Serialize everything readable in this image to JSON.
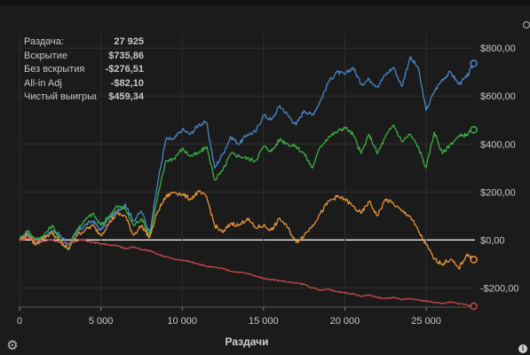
{
  "stats": [
    {
      "label": "Раздача:",
      "value": "27 925"
    },
    {
      "label": "Вскрытие",
      "value": "$735,86"
    },
    {
      "label": "Без вскрытия",
      "value": "-$276,51"
    },
    {
      "label": "All-in Adj",
      "value": "-$82,10"
    },
    {
      "label": "Чистый выигрыш",
      "value": "$459,34"
    }
  ],
  "icons": {
    "settings": "gear-icon",
    "info": "info-icon"
  },
  "info_glyph": "i",
  "chart_data": {
    "type": "line",
    "xlabel": "Раздачи",
    "ylabel": "",
    "xlim": [
      0,
      28000
    ],
    "ylim": [
      -280,
      860
    ],
    "x_ticks": [
      0,
      5000,
      10000,
      15000,
      20000,
      25000
    ],
    "x_tick_labels": [
      "0",
      "5 000",
      "10 000",
      "15 000",
      "20 000",
      "25 000"
    ],
    "y_ticks": [
      -200,
      0,
      200,
      400,
      600,
      800
    ],
    "y_tick_labels": [
      "-$200,00",
      "$0,00",
      "$200,00",
      "$400,00",
      "$600,00",
      "$800,00"
    ],
    "grid": true,
    "x": [
      0,
      500,
      1000,
      1500,
      2000,
      2500,
      3000,
      3500,
      4000,
      4500,
      5000,
      5500,
      6000,
      6500,
      7000,
      7500,
      8000,
      8500,
      9000,
      9500,
      10000,
      10500,
      11000,
      11500,
      12000,
      12500,
      13000,
      13500,
      14000,
      14500,
      15000,
      15500,
      16000,
      16500,
      17000,
      17500,
      18000,
      18500,
      19000,
      19500,
      20000,
      20500,
      21000,
      21500,
      22000,
      22500,
      23000,
      23500,
      24000,
      24500,
      25000,
      25500,
      26000,
      26500,
      27000,
      27500,
      27925
    ],
    "series": [
      {
        "color": "#4a86c8",
        "values": [
          0,
          30,
          -10,
          10,
          40,
          20,
          -20,
          30,
          60,
          80,
          40,
          90,
          120,
          150,
          80,
          120,
          30,
          240,
          420,
          420,
          460,
          440,
          480,
          490,
          300,
          360,
          430,
          400,
          440,
          450,
          520,
          500,
          560,
          520,
          480,
          540,
          520,
          580,
          660,
          700,
          690,
          720,
          650,
          670,
          640,
          690,
          720,
          640,
          760,
          720,
          540,
          620,
          670,
          700,
          650,
          680,
          735.86
        ]
      },
      {
        "color": "#3cb043",
        "values": [
          0,
          40,
          0,
          20,
          60,
          0,
          -40,
          40,
          80,
          110,
          60,
          100,
          140,
          130,
          60,
          90,
          20,
          180,
          330,
          340,
          380,
          350,
          360,
          390,
          250,
          290,
          360,
          350,
          340,
          330,
          390,
          370,
          420,
          400,
          390,
          360,
          300,
          390,
          430,
          450,
          470,
          440,
          360,
          440,
          360,
          430,
          480,
          410,
          440,
          390,
          300,
          450,
          360,
          400,
          430,
          440,
          459.34
        ]
      },
      {
        "color": "#e8943a",
        "values": [
          0,
          20,
          -20,
          10,
          30,
          -10,
          -40,
          20,
          40,
          60,
          20,
          70,
          110,
          100,
          20,
          60,
          10,
          120,
          180,
          200,
          190,
          170,
          200,
          180,
          60,
          30,
          70,
          60,
          90,
          50,
          60,
          40,
          90,
          50,
          -10,
          20,
          60,
          110,
          160,
          180,
          170,
          140,
          110,
          160,
          100,
          170,
          150,
          120,
          100,
          40,
          -20,
          -80,
          -100,
          -80,
          -120,
          -60,
          -82.1
        ]
      },
      {
        "color": "#c8484a",
        "values": [
          0,
          5,
          0,
          -5,
          0,
          -10,
          -15,
          -5,
          0,
          -10,
          -15,
          -20,
          -25,
          -35,
          -30,
          -40,
          -45,
          -60,
          -70,
          -80,
          -85,
          -90,
          -100,
          -110,
          -115,
          -120,
          -130,
          -135,
          -140,
          -150,
          -160,
          -165,
          -170,
          -175,
          -180,
          -185,
          -200,
          -210,
          -205,
          -215,
          -220,
          -225,
          -235,
          -230,
          -240,
          -245,
          -240,
          -250,
          -245,
          -250,
          -255,
          -260,
          -265,
          -260,
          -265,
          -270,
          -276.51
        ]
      }
    ]
  }
}
